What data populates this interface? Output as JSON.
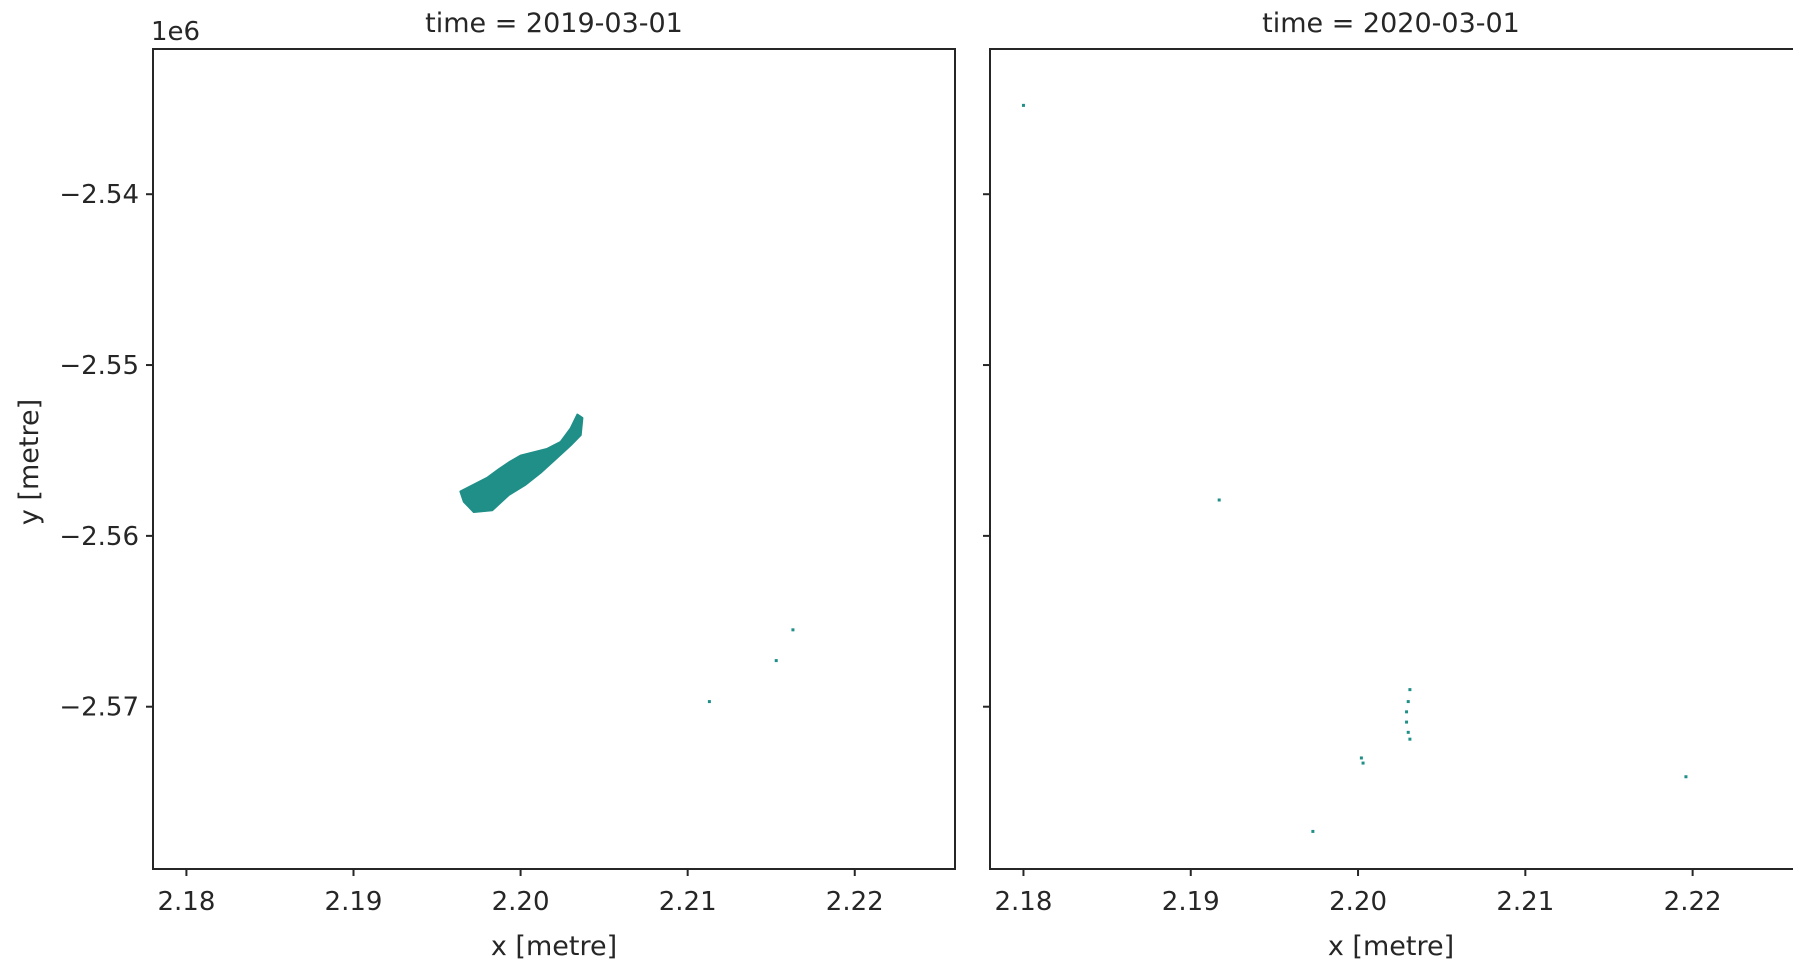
{
  "chart_data": {
    "type": "scatter",
    "grid": false,
    "color": "#1f8f88",
    "y_offset_label": "1e6",
    "xlim": [
      2.178,
      2.226
    ],
    "ylim": [
      -2.5795,
      -2.5315
    ],
    "x_ticks": [
      {
        "value": 2.18,
        "label": "2.18"
      },
      {
        "value": 2.19,
        "label": "2.19"
      },
      {
        "value": 2.2,
        "label": "2.20"
      },
      {
        "value": 2.21,
        "label": "2.21"
      },
      {
        "value": 2.22,
        "label": "2.22"
      }
    ],
    "y_ticks": [
      {
        "value": -2.54,
        "label": "−2.54"
      },
      {
        "value": -2.55,
        "label": "−2.55"
      },
      {
        "value": -2.56,
        "label": "−2.56"
      },
      {
        "value": -2.57,
        "label": "−2.57"
      }
    ],
    "xlabel": "x [metre]",
    "ylabel": "y [metre]",
    "panels": [
      {
        "title": "time = 2019-03-01",
        "regions": [
          {
            "name": "",
            "polygon": [
              [
                2.1964,
                -2.5574
              ],
              [
                2.1972,
                -2.557
              ],
              [
                2.198,
                -2.5566
              ],
              [
                2.1987,
                -2.5561
              ],
              [
                2.1993,
                -2.5557
              ],
              [
                2.2,
                -2.5553
              ],
              [
                2.2008,
                -2.5551
              ],
              [
                2.2016,
                -2.5549
              ],
              [
                2.2024,
                -2.5545
              ],
              [
                2.203,
                -2.5537
              ],
              [
                2.2034,
                -2.5529
              ],
              [
                2.2037,
                -2.5531
              ],
              [
                2.2036,
                -2.5541
              ],
              [
                2.203,
                -2.5547
              ],
              [
                2.2021,
                -2.5555
              ],
              [
                2.2012,
                -2.5563
              ],
              [
                2.2003,
                -2.557
              ],
              [
                2.1993,
                -2.5576
              ],
              [
                2.1983,
                -2.5585
              ],
              [
                2.1972,
                -2.5586
              ],
              [
                2.1966,
                -2.558
              ]
            ]
          }
        ],
        "points": [
          [
            2.2163,
            -2.5655
          ],
          [
            2.2153,
            -2.5673
          ],
          [
            2.2113,
            -2.5697
          ]
        ]
      },
      {
        "title": "time = 2020-03-01",
        "regions": [],
        "points": [
          [
            2.18,
            -2.5348
          ],
          [
            2.1917,
            -2.5579
          ],
          [
            2.2031,
            -2.569
          ],
          [
            2.203,
            -2.5697
          ],
          [
            2.2029,
            -2.5703
          ],
          [
            2.2029,
            -2.5709
          ],
          [
            2.203,
            -2.5715
          ],
          [
            2.2031,
            -2.5719
          ],
          [
            2.2002,
            -2.573
          ],
          [
            2.2003,
            -2.5733
          ],
          [
            2.2196,
            -2.5741
          ],
          [
            2.1973,
            -2.5773
          ]
        ]
      }
    ]
  }
}
